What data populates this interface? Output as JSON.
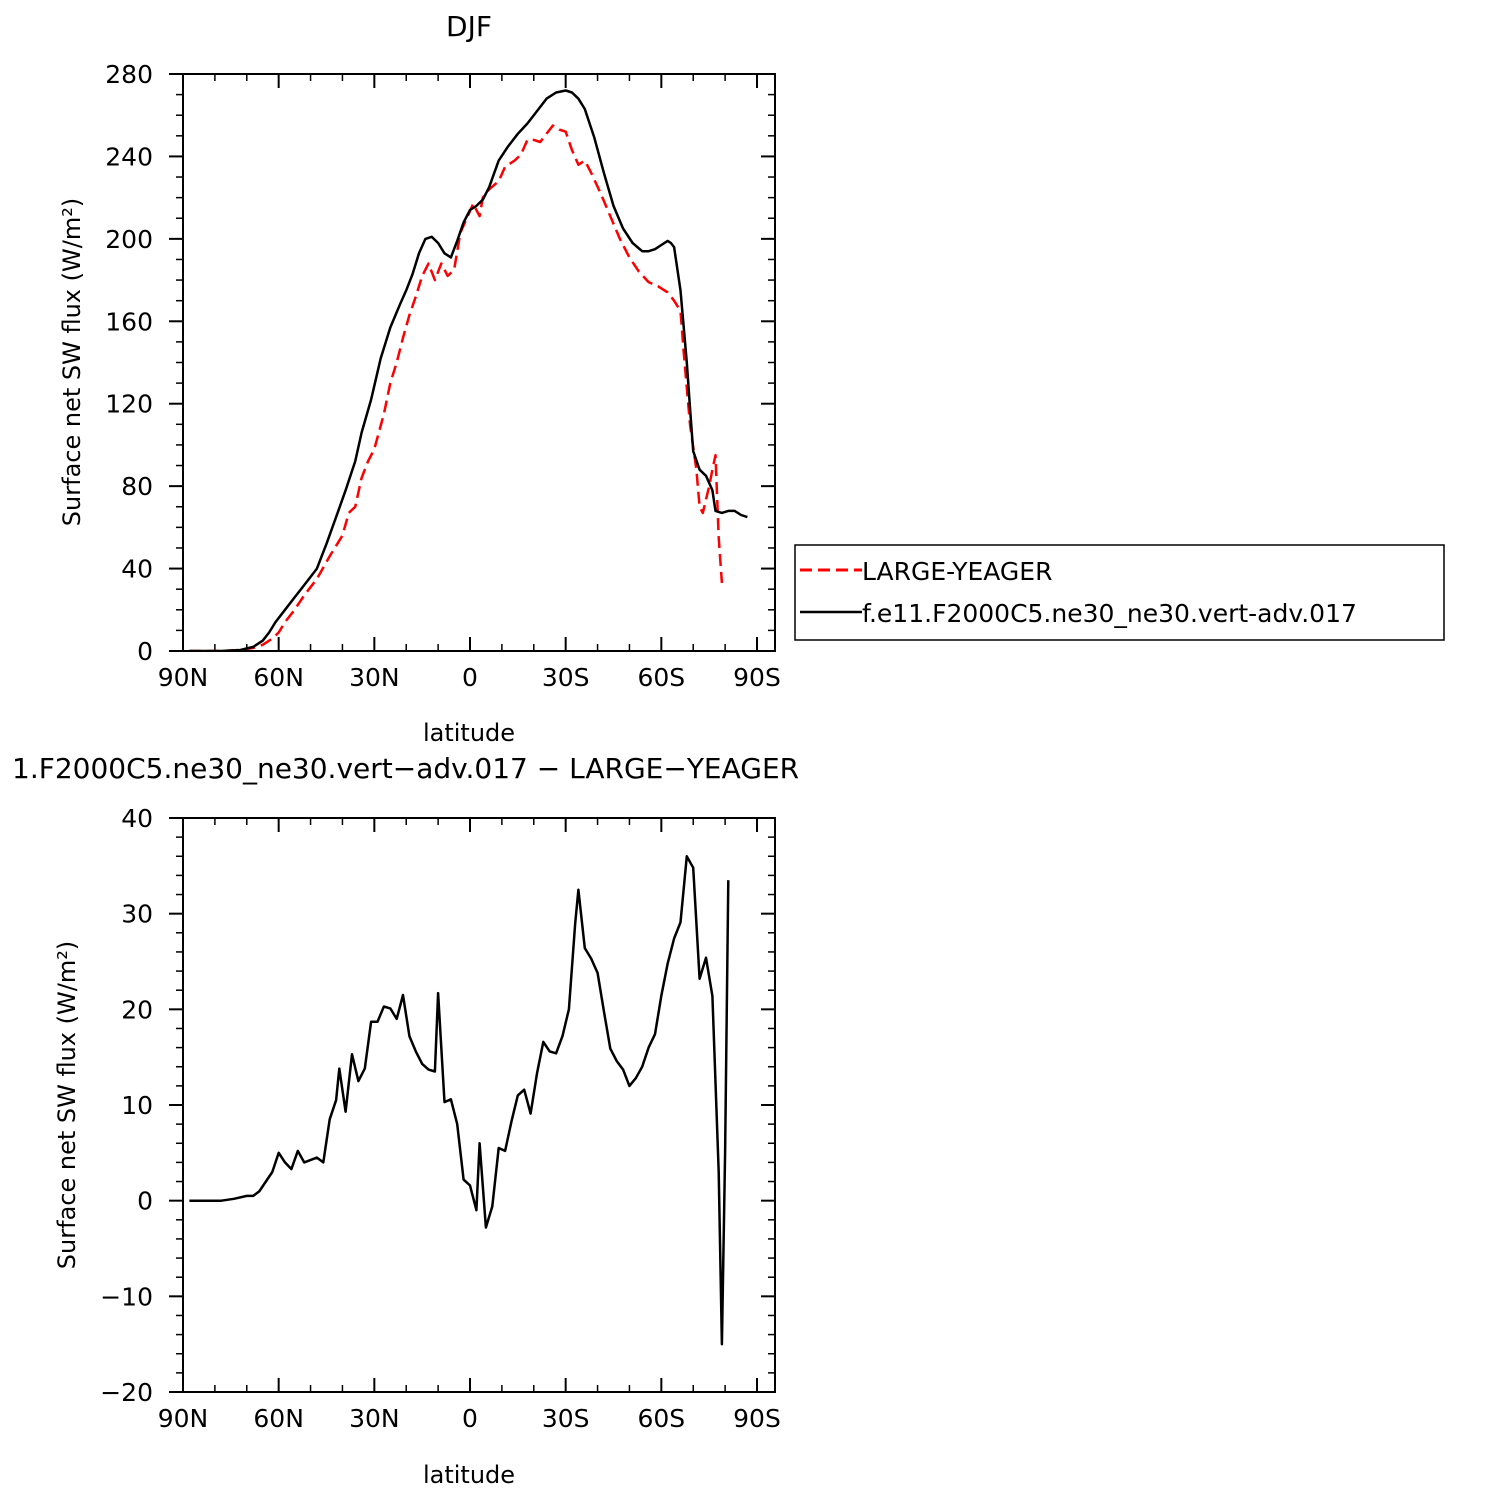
{
  "chart_data": [
    {
      "type": "line",
      "title": "DJF",
      "xlabel": "latitude",
      "ylabel": "Surface net SW flux (W/m²)",
      "xlim": [
        90,
        -90
      ],
      "ylim": [
        0,
        280
      ],
      "xticks": [
        90,
        60,
        30,
        0,
        -30,
        -60,
        -90
      ],
      "xtick_labels": [
        "90N",
        "60N",
        "30N",
        "0",
        "30S",
        "60S",
        "90S"
      ],
      "yticks": [
        0,
        40,
        80,
        120,
        160,
        200,
        240,
        280
      ],
      "ytick_labels": [
        "0",
        "40",
        "80",
        "120",
        "160",
        "200",
        "240",
        "280"
      ],
      "legend": "right",
      "series": [
        {
          "name": "LARGE-YEAGER",
          "color": "#ff0000",
          "dash": "dashed",
          "points": [
            [
              88,
              0
            ],
            [
              78,
              0
            ],
            [
              72,
              0.5
            ],
            [
              68,
              1.5
            ],
            [
              65,
              3
            ],
            [
              62,
              6
            ],
            [
              60,
              9
            ],
            [
              58,
              14
            ],
            [
              55,
              20
            ],
            [
              52,
              27
            ],
            [
              48,
              35
            ],
            [
              44,
              46
            ],
            [
              40,
              56
            ],
            [
              38,
              67
            ],
            [
              36,
              70
            ],
            [
              34,
              84
            ],
            [
              32,
              92
            ],
            [
              30,
              98
            ],
            [
              27,
              115
            ],
            [
              25,
              130
            ],
            [
              23,
              140
            ],
            [
              21,
              152
            ],
            [
              19,
              163
            ],
            [
              17,
              172
            ],
            [
              15,
              182
            ],
            [
              13,
              188
            ],
            [
              11,
              180
            ],
            [
              9,
              188
            ],
            [
              7,
              182
            ],
            [
              5,
              185
            ],
            [
              3,
              203
            ],
            [
              1,
              210
            ],
            [
              -1,
              217
            ],
            [
              -3,
              211
            ],
            [
              -4,
              220
            ],
            [
              -6,
              224
            ],
            [
              -9,
              228
            ],
            [
              -11,
              235
            ],
            [
              -14,
              238
            ],
            [
              -16,
              241
            ],
            [
              -18,
              248
            ],
            [
              -20,
              248
            ],
            [
              -22,
              247
            ],
            [
              -24,
              251
            ],
            [
              -26,
              255
            ],
            [
              -28,
              253
            ],
            [
              -30,
              252
            ],
            [
              -32,
              243
            ],
            [
              -34,
              236
            ],
            [
              -36,
              238
            ],
            [
              -38,
              232
            ],
            [
              -41,
              222
            ],
            [
              -44,
              211
            ],
            [
              -47,
              200
            ],
            [
              -50,
              191
            ],
            [
              -53,
              184
            ],
            [
              -56,
              179
            ],
            [
              -59,
              177
            ],
            [
              -62,
              174
            ],
            [
              -64,
              170
            ],
            [
              -66,
              165
            ],
            [
              -67,
              145
            ],
            [
              -69,
              110
            ],
            [
              -71,
              88
            ],
            [
              -72,
              70
            ],
            [
              -73,
              67
            ],
            [
              -75,
              80
            ],
            [
              -76,
              88
            ],
            [
              -77,
              95
            ],
            [
              -78,
              55
            ],
            [
              -79,
              33
            ]
          ]
        },
        {
          "name": "f.e11.F2000C5.ne30_ne30.vert-adv.017",
          "color": "#000000",
          "dash": "solid",
          "points": [
            [
              88,
              0
            ],
            [
              78,
              0
            ],
            [
              72,
              0.5
            ],
            [
              68,
              2
            ],
            [
              65,
              5
            ],
            [
              63,
              9
            ],
            [
              61,
              14
            ],
            [
              58,
              20
            ],
            [
              55,
              26
            ],
            [
              52,
              32
            ],
            [
              48,
              40
            ],
            [
              45,
              52
            ],
            [
              42,
              65
            ],
            [
              39,
              78
            ],
            [
              36,
              92
            ],
            [
              34,
              106
            ],
            [
              31,
              122
            ],
            [
              28,
              142
            ],
            [
              25,
              157
            ],
            [
              22,
              168
            ],
            [
              20,
              175
            ],
            [
              18,
              183
            ],
            [
              16,
              193
            ],
            [
              14,
              200
            ],
            [
              12,
              201
            ],
            [
              10,
              198
            ],
            [
              8,
              193
            ],
            [
              6,
              191
            ],
            [
              4,
              199
            ],
            [
              2,
              208
            ],
            [
              0,
              214
            ],
            [
              -2,
              216
            ],
            [
              -4,
              219
            ],
            [
              -6,
              225
            ],
            [
              -9,
              238
            ],
            [
              -12,
              245
            ],
            [
              -15,
              251
            ],
            [
              -18,
              256
            ],
            [
              -21,
              262
            ],
            [
              -24,
              268
            ],
            [
              -27,
              271
            ],
            [
              -30,
              272
            ],
            [
              -32,
              271
            ],
            [
              -34,
              268
            ],
            [
              -36,
              263
            ],
            [
              -39,
              249
            ],
            [
              -42,
              232
            ],
            [
              -45,
              216
            ],
            [
              -48,
              205
            ],
            [
              -51,
              198
            ],
            [
              -54,
              194
            ],
            [
              -56,
              194
            ],
            [
              -58,
              195
            ],
            [
              -60,
              197
            ],
            [
              -62,
              199
            ],
            [
              -63,
              198
            ],
            [
              -64,
              196
            ],
            [
              -66,
              175
            ],
            [
              -68,
              140
            ],
            [
              -69,
              118
            ],
            [
              -70,
              97
            ],
            [
              -72,
              88
            ],
            [
              -74,
              85
            ],
            [
              -76,
              78
            ],
            [
              -77,
              68
            ],
            [
              -79,
              67
            ],
            [
              -81,
              68
            ],
            [
              -83,
              68
            ],
            [
              -85,
              66
            ],
            [
              -87,
              65
            ]
          ]
        }
      ]
    },
    {
      "type": "line",
      "title": "1.F2000C5.ne30_ne30.vert−adv.017 − LARGE−YEAGER",
      "xlabel": "latitude",
      "ylabel": "Surface net SW flux (W/m²)",
      "xlim": [
        90,
        -90
      ],
      "ylim": [
        -20,
        40
      ],
      "xticks": [
        90,
        60,
        30,
        0,
        -30,
        -60,
        -90
      ],
      "xtick_labels": [
        "90N",
        "60N",
        "30N",
        "0",
        "30S",
        "60S",
        "90S"
      ],
      "yticks": [
        -20,
        -10,
        0,
        10,
        20,
        30,
        40
      ],
      "ytick_labels": [
        "−20",
        "−10",
        "0",
        "10",
        "20",
        "30",
        "40"
      ],
      "series": [
        {
          "color": "#000000",
          "dash": "solid",
          "points": [
            [
              88,
              0
            ],
            [
              78,
              0
            ],
            [
              74,
              0.2
            ],
            [
              70,
              0.5
            ],
            [
              68,
              0.5
            ],
            [
              66,
              1
            ],
            [
              64,
              2
            ],
            [
              62,
              3
            ],
            [
              60,
              5
            ],
            [
              58,
              4
            ],
            [
              56,
              3.3
            ],
            [
              54,
              5.2
            ],
            [
              52,
              4
            ],
            [
              48,
              4.5
            ],
            [
              46,
              4
            ],
            [
              44,
              8.5
            ],
            [
              42,
              10.5
            ],
            [
              41,
              13.8
            ],
            [
              39,
              9.3
            ],
            [
              37,
              15.3
            ],
            [
              35,
              12.5
            ],
            [
              33,
              13.8
            ],
            [
              31,
              18.7
            ],
            [
              29,
              18.7
            ],
            [
              27,
              20.3
            ],
            [
              25,
              20.1
            ],
            [
              23,
              19
            ],
            [
              21,
              21.5
            ],
            [
              19,
              17.2
            ],
            [
              17,
              15.6
            ],
            [
              15,
              14.3
            ],
            [
              13,
              13.7
            ],
            [
              11,
              13.5
            ],
            [
              10,
              21.7
            ],
            [
              8,
              10.3
            ],
            [
              6,
              10.6
            ],
            [
              4,
              8
            ],
            [
              2,
              2.2
            ],
            [
              0,
              1.6
            ],
            [
              -2,
              -1
            ],
            [
              -3,
              6
            ],
            [
              -5,
              -2.8
            ],
            [
              -7,
              -0.6
            ],
            [
              -9,
              5.5
            ],
            [
              -11,
              5.2
            ],
            [
              -13,
              8.3
            ],
            [
              -15,
              11
            ],
            [
              -17,
              11.6
            ],
            [
              -19,
              9.1
            ],
            [
              -21,
              13.3
            ],
            [
              -23,
              16.6
            ],
            [
              -25,
              15.6
            ],
            [
              -27,
              15.4
            ],
            [
              -29,
              17.2
            ],
            [
              -31,
              20
            ],
            [
              -33,
              29
            ],
            [
              -34,
              32.5
            ],
            [
              -36,
              26.4
            ],
            [
              -38,
              25.3
            ],
            [
              -40,
              23.8
            ],
            [
              -42,
              19.8
            ],
            [
              -44,
              15.9
            ],
            [
              -46,
              14.6
            ],
            [
              -48,
              13.7
            ],
            [
              -50,
              12
            ],
            [
              -52,
              12.8
            ],
            [
              -54,
              14
            ],
            [
              -56,
              16
            ],
            [
              -58,
              17.4
            ],
            [
              -60,
              21.4
            ],
            [
              -62,
              24.8
            ],
            [
              -64,
              27.4
            ],
            [
              -66,
              29.1
            ],
            [
              -68,
              36
            ],
            [
              -70,
              34.8
            ],
            [
              -72,
              23.2
            ],
            [
              -74,
              25.4
            ],
            [
              -76,
              21.4
            ],
            [
              -78,
              3
            ],
            [
              -79,
              -15
            ],
            [
              -80,
              5
            ],
            [
              -81,
              33.5
            ]
          ]
        }
      ]
    }
  ]
}
